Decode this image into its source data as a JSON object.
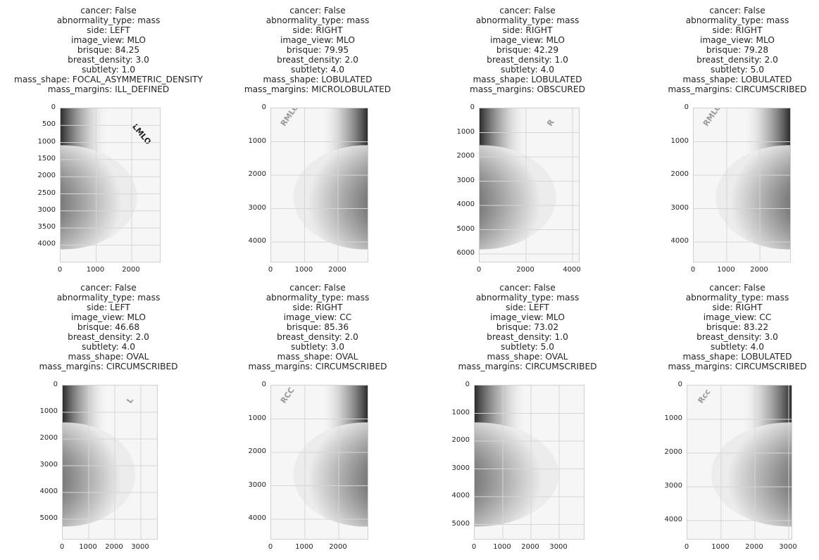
{
  "panels": [
    {
      "lines": [
        "cancer: False",
        "abnormality_type: mass",
        "side: LEFT",
        "image_view: MLO",
        "brisque: 84.25",
        "breast_density: 3.0",
        "subtlety: 1.0",
        "mass_shape: FOCAL_ASYMMETRIC_DENSITY",
        "mass_margins: ILL_DEFINED"
      ],
      "yticks": [
        "0",
        "500",
        "1000",
        "1500",
        "2000",
        "2500",
        "3000",
        "3500",
        "4000"
      ],
      "xticks": [
        "0",
        "1000",
        "2000"
      ],
      "marker": "LMLO",
      "side": "left"
    },
    {
      "lines": [
        "cancer: False",
        "abnormality_type: mass",
        "side: RIGHT",
        "image_view: MLO",
        "brisque: 79.95",
        "breast_density: 2.0",
        "subtlety: 4.0",
        "mass_shape: LOBULATED",
        "mass_margins: MICROLOBULATED"
      ],
      "yticks": [
        "0",
        "1000",
        "2000",
        "3000",
        "4000"
      ],
      "xticks": [
        "0",
        "1000",
        "2000"
      ],
      "marker": "RMLO",
      "side": "right"
    },
    {
      "lines": [
        "cancer: False",
        "abnormality_type: mass",
        "side: RIGHT",
        "image_view: MLO",
        "brisque: 42.29",
        "breast_density: 1.0",
        "subtlety: 4.0",
        "mass_shape: LOBULATED",
        "mass_margins: OBSCURED"
      ],
      "yticks": [
        "0",
        "1000",
        "2000",
        "3000",
        "4000",
        "5000",
        "6000"
      ],
      "xticks": [
        "0",
        "2000",
        "4000"
      ],
      "marker": "R",
      "side": "left"
    },
    {
      "lines": [
        "cancer: False",
        "abnormality_type: mass",
        "side: RIGHT",
        "image_view: MLO",
        "brisque: 79.28",
        "breast_density: 2.0",
        "subtlety: 5.0",
        "mass_shape: LOBULATED",
        "mass_margins: CIRCUMSCRIBED"
      ],
      "yticks": [
        "0",
        "1000",
        "2000",
        "3000",
        "4000"
      ],
      "xticks": [
        "0",
        "1000",
        "2000"
      ],
      "marker": "RMLO",
      "side": "right"
    },
    {
      "lines": [
        "cancer: False",
        "abnormality_type: mass",
        "side: LEFT",
        "image_view: MLO",
        "brisque: 46.68",
        "breast_density: 2.0",
        "subtlety: 4.0",
        "mass_shape: OVAL",
        "mass_margins: CIRCUMSCRIBED"
      ],
      "yticks": [
        "0",
        "1000",
        "2000",
        "3000",
        "4000",
        "5000"
      ],
      "xticks": [
        "0",
        "1000",
        "2000",
        "3000"
      ],
      "marker": "L",
      "side": "left"
    },
    {
      "lines": [
        "cancer: False",
        "abnormality_type: mass",
        "side: RIGHT",
        "image_view: CC",
        "brisque: 85.36",
        "breast_density: 2.0",
        "subtlety: 3.0",
        "mass_shape: OVAL",
        "mass_margins: CIRCUMSCRIBED"
      ],
      "yticks": [
        "0",
        "1000",
        "2000",
        "3000",
        "4000"
      ],
      "xticks": [
        "0",
        "1000",
        "2000"
      ],
      "marker": "RCC",
      "side": "right"
    },
    {
      "lines": [
        "cancer: False",
        "abnormality_type: mass",
        "side: LEFT",
        "image_view: MLO",
        "brisque: 73.02",
        "breast_density: 1.0",
        "subtlety: 5.0",
        "mass_shape: OVAL",
        "mass_margins: CIRCUMSCRIBED"
      ],
      "yticks": [
        "0",
        "1000",
        "2000",
        "3000",
        "4000",
        "5000"
      ],
      "xticks": [
        "0",
        "1000",
        "2000",
        "3000"
      ],
      "marker": "",
      "side": "left"
    },
    {
      "lines": [
        "cancer: False",
        "abnormality_type: mass",
        "side: RIGHT",
        "image_view: CC",
        "brisque: 83.22",
        "breast_density: 3.0",
        "subtlety: 4.0",
        "mass_shape: LOBULATED",
        "mass_margins: CIRCUMSCRIBED"
      ],
      "yticks": [
        "0",
        "1000",
        "2000",
        "3000",
        "4000"
      ],
      "xticks": [
        "0",
        "1000",
        "2000",
        "3000"
      ],
      "marker": "Rcc",
      "side": "right"
    }
  ]
}
